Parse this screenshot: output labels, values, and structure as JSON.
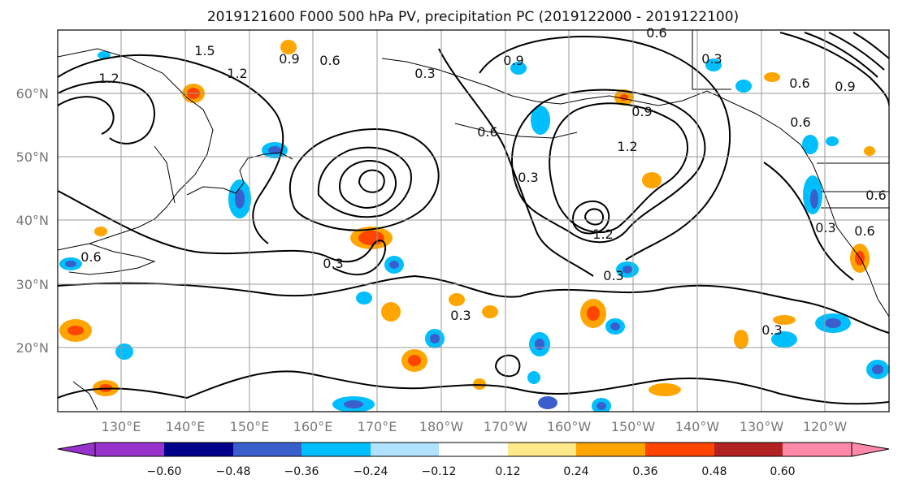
{
  "title": "2019121600 F000 500 hPa PV, precipitation PC (2019122000 - 2019122100)",
  "lat_labels": [
    "60°N",
    "50°N",
    "40°N",
    "30°N",
    "20°N"
  ],
  "lon_labels": [
    "130°E",
    "140°E",
    "150°E",
    "160°E",
    "170°E",
    "180°W",
    "170°W",
    "160°W",
    "150°W",
    "140°W",
    "130°W",
    "120°W"
  ],
  "colorbar": {
    "ticks": [
      "−0.60",
      "−0.48",
      "−0.36",
      "−0.24",
      "−0.12",
      "0.12",
      "0.24",
      "0.36",
      "0.48",
      "0.60"
    ],
    "colors": [
      "#9932cc",
      "#00008b",
      "#3a5fcd",
      "#00bfff",
      "#b0e2ff",
      "#ffffff",
      "#ffe98a",
      "#ffa500",
      "#ff4500",
      "#b22222",
      "#ff89a8"
    ]
  },
  "contour_labels": [
    "1.5",
    "1.2",
    "0.9",
    "0.6",
    "1.2",
    "0.3",
    "0.6",
    "0.3",
    "0.3",
    "0.6",
    "0.9",
    "1.2",
    "0.3",
    "1.2",
    "0.9",
    "0.6",
    "0.3",
    "0.6",
    "0.3",
    "0.3",
    "0.9",
    "0.6",
    "0.6",
    "0.3",
    "0.6"
  ]
}
